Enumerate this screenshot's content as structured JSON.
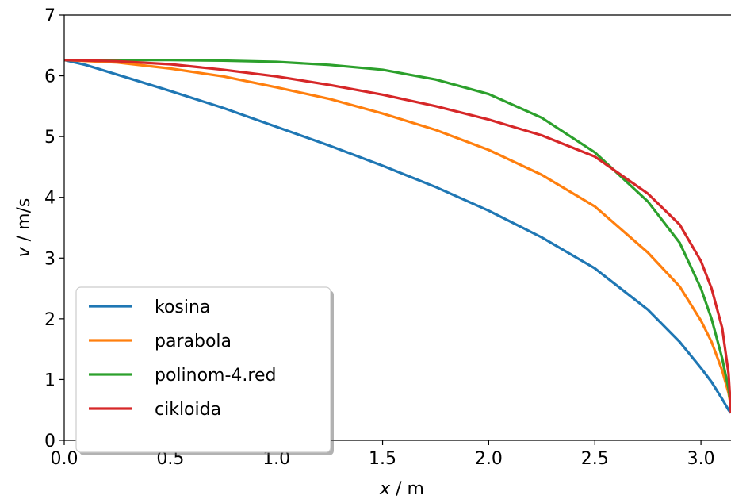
{
  "chart_data": {
    "type": "line",
    "xlabel": {
      "var": "x",
      "unit": " / m"
    },
    "ylabel": {
      "var": "v",
      "unit": " / m/s"
    },
    "xlim": [
      0,
      3.14159
    ],
    "ylim": [
      0,
      7
    ],
    "xticks": [
      0.0,
      0.5,
      1.0,
      1.5,
      2.0,
      2.5,
      3.0
    ],
    "xtick_labels": [
      "0.0",
      "0.5",
      "1.0",
      "1.5",
      "2.0",
      "2.5",
      "3.0"
    ],
    "yticks": [
      0,
      1,
      2,
      3,
      4,
      5,
      6,
      7
    ],
    "ytick_labels": [
      "0",
      "1",
      "2",
      "3",
      "4",
      "5",
      "6",
      "7"
    ],
    "grid": false,
    "legend_position": "lower-left",
    "series": [
      {
        "name": "kosina",
        "color": "#1f77b4",
        "x": [
          0,
          0.1,
          0.25,
          0.5,
          0.75,
          1.0,
          1.25,
          1.5,
          1.75,
          2.0,
          2.25,
          2.5,
          2.75,
          2.9,
          3.0,
          3.05,
          3.1,
          3.13,
          3.1416
        ],
        "y": [
          6.26,
          6.18,
          6.02,
          5.75,
          5.47,
          5.16,
          4.85,
          4.52,
          4.17,
          3.78,
          3.34,
          2.83,
          2.15,
          1.62,
          1.19,
          0.96,
          0.68,
          0.5,
          0.45
        ]
      },
      {
        "name": "parabola",
        "color": "#ff7f0e",
        "x": [
          0,
          0.25,
          0.5,
          0.75,
          1.0,
          1.25,
          1.5,
          1.75,
          2.0,
          2.25,
          2.5,
          2.75,
          2.9,
          3.0,
          3.05,
          3.1,
          3.13,
          3.1416
        ],
        "y": [
          6.26,
          6.22,
          6.12,
          5.99,
          5.81,
          5.62,
          5.38,
          5.11,
          4.78,
          4.37,
          3.85,
          3.09,
          2.53,
          1.97,
          1.62,
          1.15,
          0.78,
          0.55
        ]
      },
      {
        "name": "polinom-4.red",
        "color": "#2ca02c",
        "x": [
          0,
          0.25,
          0.5,
          0.75,
          1.0,
          1.25,
          1.5,
          1.75,
          2.0,
          2.25,
          2.5,
          2.75,
          2.9,
          3.0,
          3.05,
          3.1,
          3.13,
          3.1416
        ],
        "y": [
          6.26,
          6.26,
          6.26,
          6.25,
          6.23,
          6.18,
          6.1,
          5.94,
          5.7,
          5.31,
          4.74,
          3.93,
          3.25,
          2.5,
          2.0,
          1.35,
          0.85,
          0.55
        ]
      },
      {
        "name": "cikloida",
        "color": "#d62728",
        "x": [
          0,
          0.25,
          0.5,
          0.75,
          1.0,
          1.25,
          1.5,
          1.75,
          2.0,
          2.25,
          2.5,
          2.75,
          2.9,
          3.0,
          3.05,
          3.1,
          3.13,
          3.1416
        ],
        "y": [
          6.26,
          6.24,
          6.19,
          6.1,
          5.99,
          5.85,
          5.69,
          5.5,
          5.28,
          5.02,
          4.67,
          4.06,
          3.55,
          2.95,
          2.5,
          1.85,
          1.1,
          0.45
        ]
      }
    ]
  }
}
